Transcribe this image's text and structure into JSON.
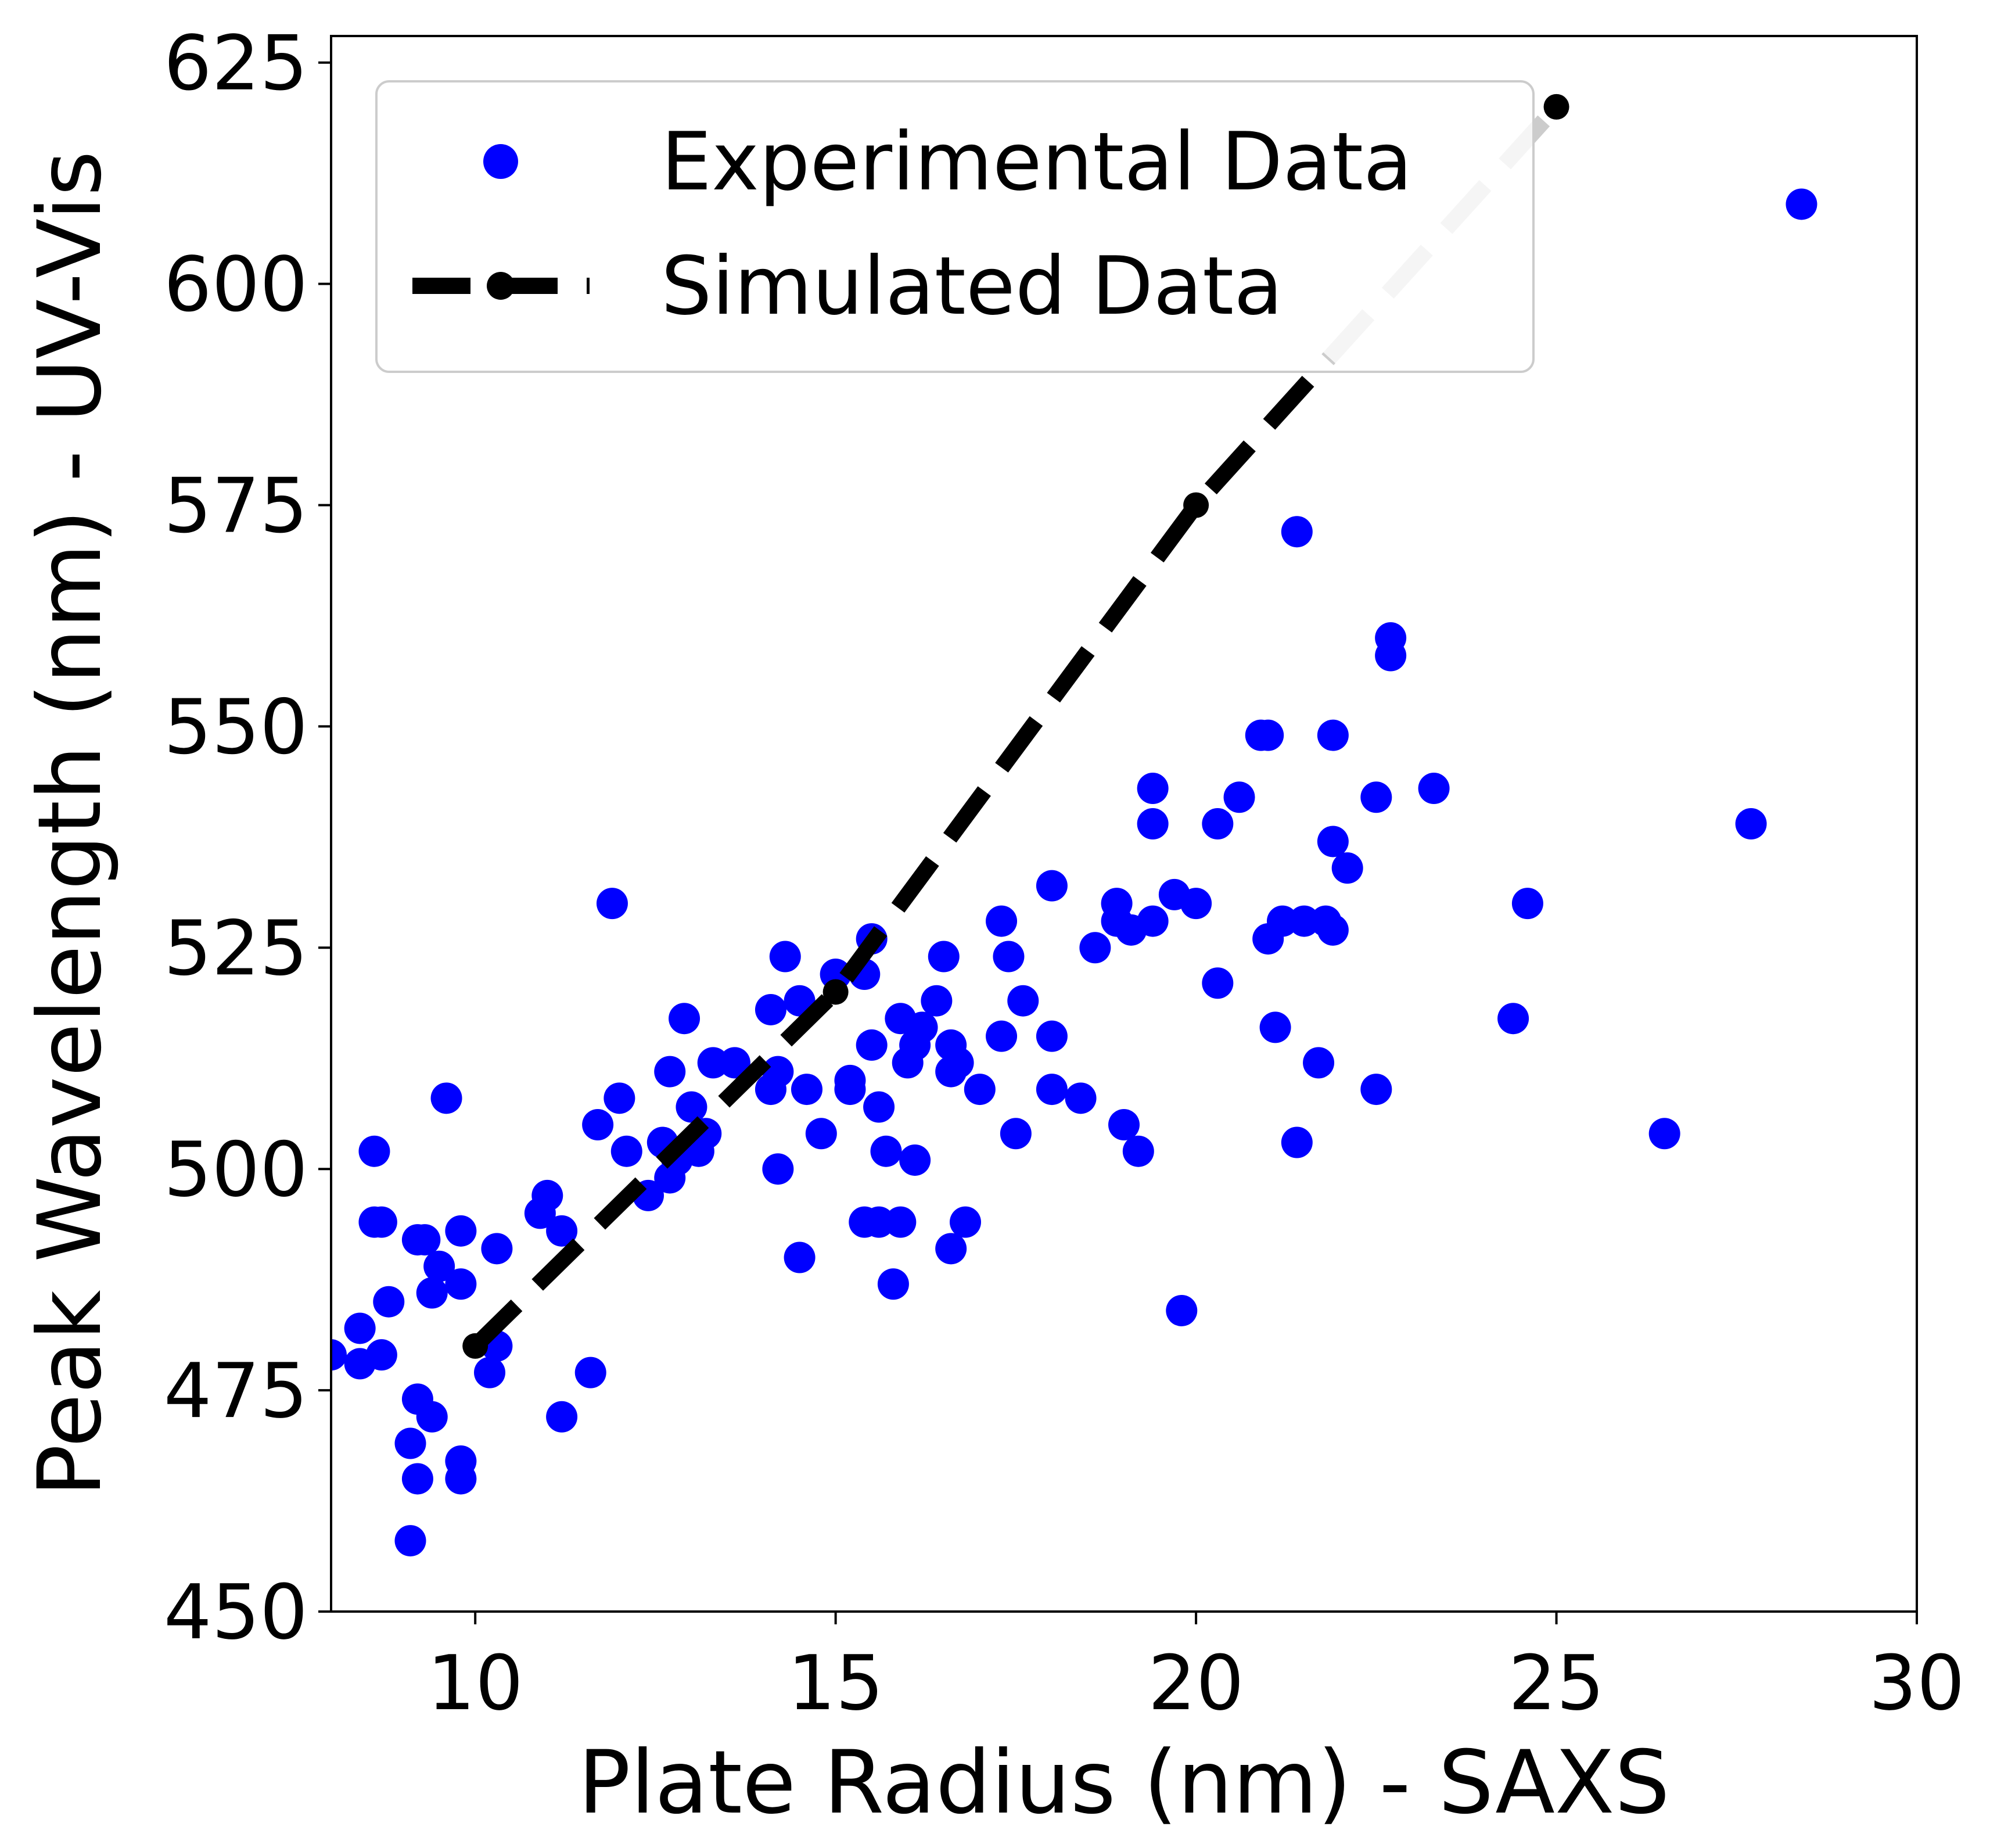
{
  "chart_data": {
    "type": "scatter",
    "title": "",
    "xlabel": "Plate Radius (nm) - SAXS",
    "ylabel": "Peak Wavelength (nm) - UV-Vis",
    "xlim": [
      8,
      30
    ],
    "ylim": [
      450,
      628
    ],
    "xticks": [
      10,
      15,
      20,
      25,
      30
    ],
    "yticks": [
      450,
      475,
      500,
      525,
      550,
      575,
      600,
      625
    ],
    "grid": false,
    "legend": {
      "position": "top-left"
    },
    "series": [
      {
        "name": "Experimental Data",
        "kind": "scatter",
        "color": "#0000ff",
        "points": [
          [
            8.0,
            479
          ],
          [
            8.4,
            478
          ],
          [
            8.4,
            482
          ],
          [
            8.7,
            479
          ],
          [
            8.6,
            502
          ],
          [
            8.6,
            494
          ],
          [
            8.7,
            494
          ],
          [
            8.8,
            485
          ],
          [
            9.1,
            469
          ],
          [
            9.1,
            458
          ],
          [
            9.2,
            474
          ],
          [
            9.2,
            465
          ],
          [
            9.2,
            492
          ],
          [
            9.3,
            492
          ],
          [
            9.4,
            472
          ],
          [
            9.4,
            486
          ],
          [
            9.5,
            489
          ],
          [
            9.6,
            508
          ],
          [
            9.8,
            467
          ],
          [
            9.8,
            465
          ],
          [
            9.8,
            487
          ],
          [
            9.8,
            493
          ],
          [
            10.2,
            477
          ],
          [
            10.3,
            480
          ],
          [
            10.3,
            491
          ],
          [
            10.9,
            495
          ],
          [
            11.0,
            497
          ],
          [
            11.2,
            493
          ],
          [
            11.2,
            472
          ],
          [
            11.6,
            477
          ],
          [
            11.7,
            505
          ],
          [
            11.9,
            530
          ],
          [
            12.0,
            508
          ],
          [
            12.1,
            502
          ],
          [
            12.4,
            497
          ],
          [
            12.6,
            503
          ],
          [
            12.7,
            511
          ],
          [
            12.7,
            499
          ],
          [
            12.8,
            501
          ],
          [
            12.9,
            517
          ],
          [
            13.0,
            507
          ],
          [
            13.1,
            502
          ],
          [
            13.2,
            504
          ],
          [
            13.3,
            512
          ],
          [
            13.6,
            512
          ],
          [
            14.1,
            509
          ],
          [
            14.1,
            518
          ],
          [
            14.2,
            511
          ],
          [
            14.2,
            500
          ],
          [
            14.3,
            524
          ],
          [
            14.5,
            519
          ],
          [
            14.5,
            490
          ],
          [
            14.6,
            509
          ],
          [
            14.8,
            504
          ],
          [
            15.0,
            522
          ],
          [
            15.2,
            510
          ],
          [
            15.2,
            509
          ],
          [
            15.4,
            522
          ],
          [
            15.4,
            494
          ],
          [
            15.5,
            514
          ],
          [
            15.5,
            526
          ],
          [
            15.6,
            507
          ],
          [
            15.6,
            494
          ],
          [
            15.7,
            502
          ],
          [
            15.8,
            487
          ],
          [
            15.9,
            494
          ],
          [
            15.9,
            517
          ],
          [
            16.0,
            512
          ],
          [
            16.1,
            501
          ],
          [
            16.1,
            514
          ],
          [
            16.2,
            516
          ],
          [
            16.4,
            519
          ],
          [
            16.5,
            524
          ],
          [
            16.6,
            511
          ],
          [
            16.6,
            491
          ],
          [
            16.6,
            514
          ],
          [
            16.7,
            512
          ],
          [
            16.8,
            494
          ],
          [
            17.0,
            509
          ],
          [
            17.3,
            528
          ],
          [
            17.3,
            515
          ],
          [
            17.4,
            524
          ],
          [
            17.5,
            504
          ],
          [
            17.6,
            519
          ],
          [
            18.0,
            532
          ],
          [
            18.0,
            509
          ],
          [
            18.0,
            515
          ],
          [
            18.4,
            508
          ],
          [
            18.6,
            525
          ],
          [
            18.9,
            530
          ],
          [
            18.9,
            528
          ],
          [
            19.0,
            505
          ],
          [
            19.1,
            527
          ],
          [
            19.2,
            502
          ],
          [
            19.4,
            528
          ],
          [
            19.4,
            543
          ],
          [
            19.4,
            539
          ],
          [
            19.7,
            531
          ],
          [
            19.8,
            484
          ],
          [
            20.0,
            530
          ],
          [
            20.3,
            521
          ],
          [
            20.3,
            539
          ],
          [
            20.6,
            542
          ],
          [
            20.9,
            549
          ],
          [
            21.0,
            549
          ],
          [
            21.0,
            526
          ],
          [
            21.1,
            516
          ],
          [
            21.2,
            528
          ],
          [
            21.4,
            572
          ],
          [
            21.4,
            503
          ],
          [
            21.5,
            528
          ],
          [
            21.7,
            512
          ],
          [
            21.8,
            528
          ],
          [
            21.9,
            527
          ],
          [
            21.9,
            537
          ],
          [
            21.9,
            549
          ],
          [
            22.1,
            534
          ],
          [
            22.5,
            542
          ],
          [
            22.5,
            509
          ],
          [
            22.7,
            560
          ],
          [
            22.7,
            558
          ],
          [
            23.3,
            543
          ],
          [
            24.4,
            517
          ],
          [
            24.6,
            530
          ],
          [
            26.5,
            504
          ],
          [
            27.7,
            539
          ],
          [
            28.4,
            609
          ]
        ]
      },
      {
        "name": "Simulated Data",
        "kind": "line",
        "color": "#000000",
        "faded_color": "#cccccc",
        "points": [
          [
            10,
            480
          ],
          [
            15,
            520
          ],
          [
            20,
            575
          ],
          [
            25,
            620
          ]
        ]
      }
    ]
  }
}
